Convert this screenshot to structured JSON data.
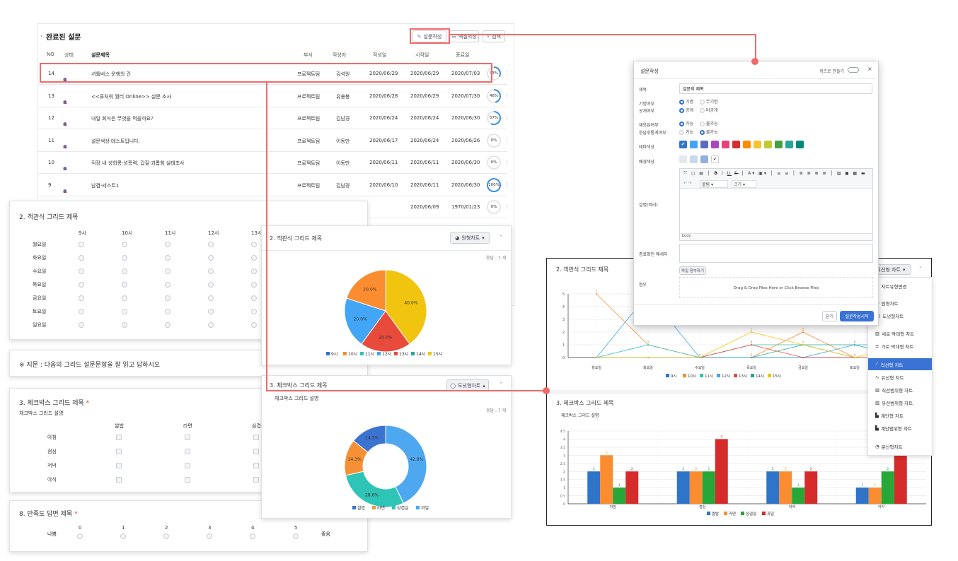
{
  "list": {
    "title": "완료된 설문",
    "buttons": {
      "create": "설문작성",
      "save": "엑셀저장",
      "search": "검색"
    },
    "headers": [
      "NO",
      "상태",
      "설문제목",
      "부서",
      "작성자",
      "작성일",
      "시작일",
      "종료일"
    ],
    "rows": [
      {
        "no": "14",
        "title": "셔틀버스 운행의 건",
        "dept": "프로젝트팀",
        "author": "김석원",
        "created": "2020/06/29",
        "start": "2020/06/29",
        "end": "2020/07/03",
        "pct": "33%"
      },
      {
        "no": "13",
        "title": "<<퓨처워 월터 Online>> 설문 조사",
        "dept": "프로젝트팀",
        "author": "유용봉",
        "created": "2020/06/28",
        "start": "2020/06/29",
        "end": "2020/07/30",
        "pct": "46%"
      },
      {
        "no": "12",
        "title": "내일 회식은 무엇을 먹을까요?",
        "dept": "프로젝트팀",
        "author": "김남경",
        "created": "2020/06/24",
        "start": "2020/06/24",
        "end": "2020/06/30",
        "pct": "57%"
      },
      {
        "no": "11",
        "title": "설문색상 테스트입니다.",
        "dept": "프로젝트팀",
        "author": "이동만",
        "created": "2020/06/17",
        "start": "2020/06/24",
        "end": "2020/06/26",
        "pct": "0%"
      },
      {
        "no": "10",
        "title": "직장 내 성희롱·성폭력, 갑질·괴롭힘 실태조사",
        "dept": "프로젝트팀",
        "author": "이동만",
        "created": "2020/06/11",
        "start": "2020/06/11",
        "end": "2020/06/30",
        "pct": "0%"
      },
      {
        "no": "9",
        "title": "남겸-테스트1",
        "dept": "프로젝트팀",
        "author": "김남경",
        "created": "2020/06/10",
        "start": "2020/06/11",
        "end": "2020/06/30",
        "pct": "100%"
      },
      {
        "no": "",
        "title": "",
        "dept": "",
        "author": "",
        "created": "",
        "start": "2020/06/09",
        "end": "1970/01/23",
        "pct": "0%"
      }
    ]
  },
  "survey": {
    "q2_title": "2. 객관식 그리드 제목",
    "q2_cols": [
      "9시",
      "10시",
      "11시",
      "12시",
      "13시"
    ],
    "q2_rows": [
      "월요일",
      "화요일",
      "수요일",
      "목요일",
      "금요일",
      "토요일",
      "일요일"
    ],
    "notice": "※ 지문 : 다음의 그리드 설문문항을 잘 읽고 답하시오",
    "q3_title": "3. 체크박스 그리드 제목",
    "q3_required": "*",
    "q3_desc": "체크박스 그리드 설명",
    "q3_cols": [
      "쌀밥",
      "라면",
      "삼겹"
    ],
    "q3_rows": [
      "아침",
      "점심",
      "저녁",
      "야식"
    ],
    "q8_title": "8. 만족도 답변 제목",
    "q8_required": "*",
    "q8_low": "나쁨",
    "q8_high": "좋음",
    "q8_scale": [
      "0",
      "1",
      "2",
      "3",
      "4",
      "5"
    ]
  },
  "pie_panel": {
    "title": "2. 객관식 그리드 제목",
    "chart_btn": "원형차트",
    "responses": "응답 : 7 개",
    "title2": "3. 체크박스 그리드 제목",
    "desc2": "체크박스 그리드 설명",
    "chart_btn2": "도넛형차트",
    "responses2": "응답 : 7 개"
  },
  "dialog": {
    "title": "설문작성",
    "quiz_toggle": "퀴즈로 만들기",
    "subject_label": "제목",
    "subject_value": "설문지 제목",
    "named_label": "기명여부",
    "named_opt1": "기명",
    "named_opt2": "무기명",
    "public_label": "공개여부",
    "public_opt1": "공개",
    "public_opt2": "비공개",
    "reanswer_label": "재응답여부",
    "reanswer_opt1": "가능",
    "reanswer_opt2": "불가능",
    "statsafter_label": "응답후통계여부",
    "statsafter_opt1": "가능",
    "statsafter_opt2": "불가능",
    "theme_label": "테마색상",
    "bg_label": "배경색상",
    "desc_label": "설명(머리)",
    "font_select": "굴림",
    "size_select": "크기",
    "editor_footer": "body",
    "finish_label": "종료확인 메세지",
    "finish_btn": "파일 첨부하기",
    "attach_label": "첨부",
    "drop_text": "Drag & Drop Files Here or Click Browse Files",
    "close_btn": "닫기",
    "start_btn": "설문작성시작",
    "colors": [
      "#2e74c9",
      "#42a5f5",
      "#5c6bc0",
      "#ab47bc",
      "#ec407a",
      "#d32f2f",
      "#fb8c00",
      "#fbc02d",
      "#c0ca33",
      "#43a047",
      "#26a69a",
      "#00897b"
    ]
  },
  "chart_panel": {
    "title": "2. 객관식 그리드 제목",
    "type_btn": "직선형 차트",
    "title2": "3. 체크박스 그리드 제목",
    "desc2": "체크박스 그리드 설명",
    "menu": [
      "차트유형변경",
      "원형차트",
      "도넛형차트",
      "세로 막대형 차트",
      "가로 막대형 차트",
      "직선형 차트",
      "유선형 차트",
      "직선범위형 차트",
      "유선범위형 차트",
      "계단형 차트",
      "계단범위형 차트",
      "분산형차트"
    ]
  },
  "chart_data": [
    {
      "type": "pie",
      "title": "2. 객관식 그리드 제목",
      "labels": [
        "9시",
        "10시",
        "11시",
        "12시",
        "13시",
        "14시",
        "15시"
      ],
      "values": [
        0,
        20.0,
        0,
        20.0,
        20.0,
        0,
        40.0
      ],
      "colors": [
        "#2e74c9",
        "#fb8c2f",
        "#2ec4b6",
        "#42a5f5",
        "#e84a3c",
        "#26a69a",
        "#f1c40f"
      ]
    },
    {
      "type": "pie",
      "title": "3. 체크박스 그리드 제목",
      "labels": [
        "쌀밥",
        "라면",
        "삼겹살",
        "과일"
      ],
      "values": [
        14.3,
        14.3,
        28.6,
        42.9
      ],
      "colors": [
        "#3b73d1",
        "#f59134",
        "#2ec4b6",
        "#4ea8f0"
      ]
    },
    {
      "type": "line",
      "title": "2. 객관식 그리드 제목",
      "categories": [
        "월요일",
        "화요일",
        "수요일",
        "목요일",
        "금요일",
        "토요일",
        "일요일"
      ],
      "series": [
        {
          "name": "9시",
          "values": [
            0,
            0,
            0,
            0,
            0,
            0,
            0
          ]
        },
        {
          "name": "10시",
          "values": [
            5,
            1,
            0,
            0,
            2,
            0,
            0
          ]
        },
        {
          "name": "11시",
          "values": [
            0,
            1,
            0,
            1,
            1,
            0,
            0
          ]
        },
        {
          "name": "12시",
          "values": [
            0,
            5,
            0,
            0,
            0,
            1,
            1
          ]
        },
        {
          "name": "13시",
          "values": [
            0,
            0,
            0,
            1,
            0,
            0,
            0
          ]
        },
        {
          "name": "14시",
          "values": [
            0,
            0,
            0,
            0,
            1,
            1,
            0
          ]
        },
        {
          "name": "15시",
          "values": [
            0,
            0,
            0,
            2,
            1,
            0,
            1
          ]
        }
      ],
      "colors": [
        "#2e74c9",
        "#fb8c2f",
        "#2ec4b6",
        "#42a5f5",
        "#e84a3c",
        "#26a69a",
        "#f1c40f"
      ],
      "ylim": [
        0,
        5
      ]
    },
    {
      "type": "bar",
      "title": "3. 체크박스 그리드 제목",
      "categories": [
        "아침",
        "점심",
        "저녁",
        "야식"
      ],
      "series": [
        {
          "name": "쌀밥",
          "values": [
            2,
            2,
            2,
            1
          ]
        },
        {
          "name": "라면",
          "values": [
            3,
            2,
            2,
            1
          ]
        },
        {
          "name": "삼겹살",
          "values": [
            1,
            2,
            1,
            2
          ]
        },
        {
          "name": "과일",
          "values": [
            2,
            4,
            2,
            3
          ]
        }
      ],
      "colors": [
        "#2e74c9",
        "#fb8c2f",
        "#27a737",
        "#d62b2b"
      ],
      "ylim": [
        0,
        4.5
      ]
    }
  ]
}
